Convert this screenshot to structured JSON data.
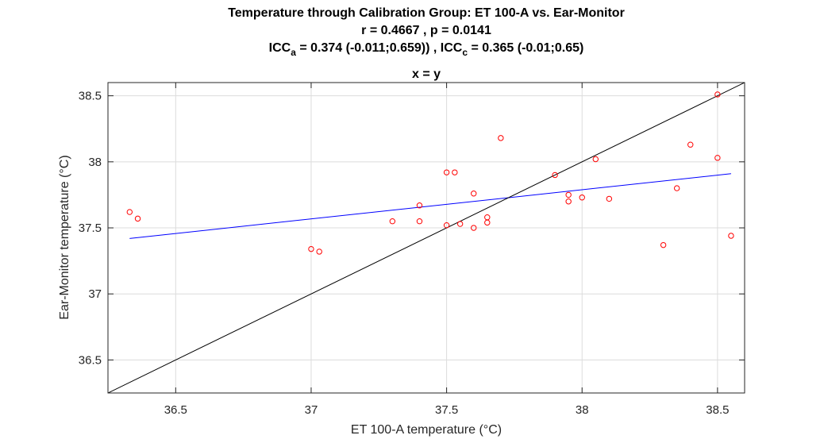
{
  "chart_data": {
    "type": "scatter",
    "title_lines": [
      "Temperature through Calibration Group: ET 100-A vs. Ear-Monitor",
      "r = 0.4667 , p = 0.0141"
    ],
    "icc_line": {
      "icc_label": "ICC",
      "icc_a_sub": "a",
      "icc_a_text": " = 0.374 (-0.011;0.659)) , ICC",
      "icc_c_sub": "c",
      "icc_c_text": " = 0.365 (-0.01;0.65)"
    },
    "subtitle": "x = y",
    "xlabel": "ET 100-A temperature (°C)",
    "ylabel": "Ear-Monitor temperature (°C)",
    "xlim": [
      36.25,
      38.6
    ],
    "ylim": [
      36.25,
      38.6
    ],
    "xticks": [
      36.5,
      37,
      37.5,
      38,
      38.5
    ],
    "yticks": [
      36.5,
      37,
      37.5,
      38,
      38.5
    ],
    "xtick_labels": [
      "36.5",
      "37",
      "37.5",
      "38",
      "38.5"
    ],
    "ytick_labels": [
      "36.5",
      "37",
      "37.5",
      "38",
      "38.5"
    ],
    "grid": true,
    "series": [
      {
        "kind": "scatter",
        "color": "#ff0000",
        "marker": "open-circle",
        "points": [
          [
            36.33,
            37.62
          ],
          [
            36.36,
            37.57
          ],
          [
            37.0,
            37.34
          ],
          [
            37.03,
            37.32
          ],
          [
            37.3,
            37.55
          ],
          [
            37.4,
            37.67
          ],
          [
            37.4,
            37.55
          ],
          [
            37.5,
            37.92
          ],
          [
            37.53,
            37.92
          ],
          [
            37.5,
            37.52
          ],
          [
            37.55,
            37.53
          ],
          [
            37.6,
            37.76
          ],
          [
            37.6,
            37.5
          ],
          [
            37.65,
            37.58
          ],
          [
            37.65,
            37.54
          ],
          [
            37.7,
            38.18
          ],
          [
            37.9,
            37.9
          ],
          [
            37.95,
            37.75
          ],
          [
            37.95,
            37.7
          ],
          [
            38.0,
            37.73
          ],
          [
            38.05,
            38.02
          ],
          [
            38.1,
            37.72
          ],
          [
            38.3,
            37.37
          ],
          [
            38.35,
            37.8
          ],
          [
            38.4,
            38.13
          ],
          [
            38.5,
            38.51
          ],
          [
            38.5,
            38.03
          ],
          [
            38.55,
            37.44
          ]
        ]
      },
      {
        "kind": "line",
        "color": "#0000ff",
        "points": [
          [
            36.33,
            37.42
          ],
          [
            38.55,
            37.91
          ]
        ]
      },
      {
        "kind": "line",
        "color": "#000000",
        "points": [
          [
            36.25,
            36.25
          ],
          [
            38.6,
            38.6
          ]
        ]
      }
    ]
  }
}
